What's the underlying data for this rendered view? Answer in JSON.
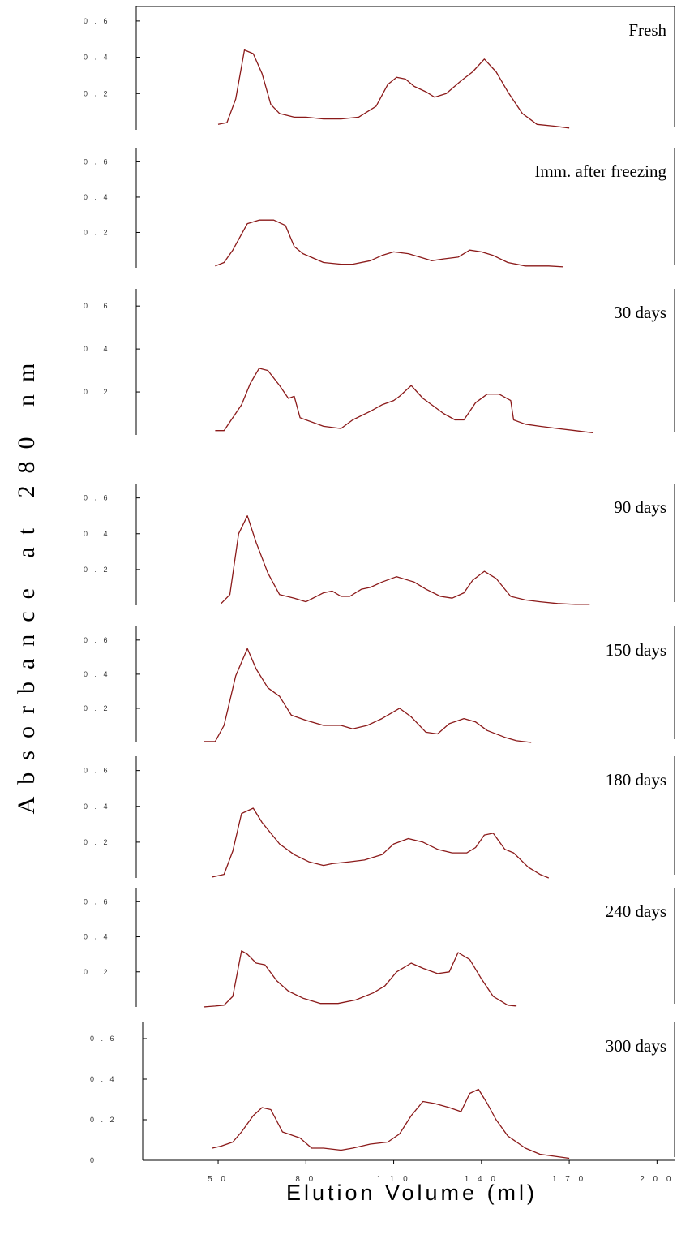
{
  "chart_data": {
    "type": "line",
    "ylabel": "Absorbance at 280 nm",
    "xlabel": "Elution Volume (ml)",
    "x_ticks": [
      "5 0",
      "8 0",
      "1 1 0",
      "1 4 0",
      "1 7 0",
      "2 0 0"
    ],
    "x_tick_values": [
      50,
      80,
      110,
      140,
      170,
      200
    ],
    "xlim": [
      22,
      206
    ],
    "color": "#8b1a1a",
    "panels": [
      {
        "label": "Fresh",
        "y_ticks": [
          "0 . 6",
          "0 . 4",
          "0 . 2"
        ],
        "y_tick_values": [
          0.6,
          0.4,
          0.2
        ],
        "ylim": [
          0,
          0.68
        ],
        "x": [
          50,
          53,
          56,
          59,
          62,
          65,
          68,
          71,
          76,
          80,
          86,
          92,
          98,
          104,
          108,
          111,
          114,
          117,
          121,
          124,
          128,
          133,
          137,
          141,
          145,
          149,
          154,
          159,
          165,
          170
        ],
        "y": [
          0.03,
          0.04,
          0.17,
          0.44,
          0.42,
          0.31,
          0.14,
          0.09,
          0.07,
          0.07,
          0.06,
          0.06,
          0.07,
          0.13,
          0.25,
          0.29,
          0.28,
          0.24,
          0.21,
          0.18,
          0.2,
          0.27,
          0.32,
          0.39,
          0.32,
          0.21,
          0.09,
          0.03,
          0.02,
          0.01
        ]
      },
      {
        "label": "Imm. after freezing",
        "y_ticks": [
          "0 . 6",
          "0 . 4",
          "0 . 2"
        ],
        "y_tick_values": [
          0.6,
          0.4,
          0.2
        ],
        "ylim": [
          0,
          0.68
        ],
        "x": [
          49,
          52,
          55,
          60,
          64,
          69,
          73,
          76,
          79,
          86,
          92,
          96,
          102,
          106,
          110,
          115,
          119,
          123,
          127,
          132,
          136,
          140,
          144,
          149,
          155,
          163,
          168
        ],
        "y": [
          0.01,
          0.03,
          0.1,
          0.25,
          0.27,
          0.27,
          0.24,
          0.12,
          0.08,
          0.03,
          0.02,
          0.02,
          0.04,
          0.07,
          0.09,
          0.08,
          0.06,
          0.04,
          0.05,
          0.06,
          0.1,
          0.09,
          0.07,
          0.03,
          0.01,
          0.01,
          0.005
        ]
      },
      {
        "label": "30 days",
        "y_ticks": [
          "0 . 6",
          "0 . 4",
          "0 . 2"
        ],
        "y_tick_values": [
          0.6,
          0.4,
          0.2
        ],
        "ylim": [
          0,
          0.68
        ],
        "x": [
          49,
          52,
          55,
          58,
          61,
          64,
          67,
          71,
          74,
          76,
          78,
          80,
          86,
          92,
          96,
          102,
          106,
          110,
          112,
          116,
          120,
          123,
          127,
          131,
          134,
          138,
          142,
          146,
          150,
          151,
          155,
          160,
          166,
          172,
          178
        ],
        "y": [
          0.02,
          0.02,
          0.08,
          0.14,
          0.24,
          0.31,
          0.3,
          0.23,
          0.17,
          0.18,
          0.08,
          0.07,
          0.04,
          0.03,
          0.07,
          0.11,
          0.14,
          0.16,
          0.18,
          0.23,
          0.17,
          0.14,
          0.1,
          0.07,
          0.07,
          0.15,
          0.19,
          0.19,
          0.16,
          0.07,
          0.05,
          0.04,
          0.03,
          0.02,
          0.01
        ]
      },
      {
        "label": "90 days",
        "y_ticks": [
          "0 . 6",
          "0 . 4",
          "0 . 2"
        ],
        "y_tick_values": [
          0.6,
          0.4,
          0.2
        ],
        "ylim": [
          0,
          0.68
        ],
        "x": [
          51,
          54,
          57,
          60,
          63,
          67,
          71,
          76,
          80,
          86,
          89,
          92,
          95,
          99,
          102,
          106,
          111,
          117,
          121,
          126,
          130,
          134,
          137,
          141,
          145,
          150,
          155,
          160,
          166,
          172,
          177
        ],
        "y": [
          0.01,
          0.06,
          0.4,
          0.5,
          0.35,
          0.18,
          0.06,
          0.04,
          0.02,
          0.07,
          0.08,
          0.05,
          0.05,
          0.09,
          0.1,
          0.13,
          0.16,
          0.13,
          0.09,
          0.05,
          0.04,
          0.07,
          0.14,
          0.19,
          0.15,
          0.05,
          0.03,
          0.02,
          0.01,
          0.005,
          0.005
        ]
      },
      {
        "label": "150 days",
        "y_ticks": [
          "0 . 6",
          "0 . 4",
          "0 . 2"
        ],
        "y_tick_values": [
          0.6,
          0.4,
          0.2
        ],
        "ylim": [
          0,
          0.68
        ],
        "x": [
          45,
          49,
          52,
          56,
          60,
          63,
          67,
          71,
          75,
          80,
          86,
          92,
          96,
          101,
          106,
          112,
          116,
          121,
          125,
          129,
          134,
          138,
          142,
          148,
          152,
          157
        ],
        "y": [
          0.005,
          0.005,
          0.1,
          0.39,
          0.55,
          0.43,
          0.32,
          0.27,
          0.16,
          0.13,
          0.1,
          0.1,
          0.08,
          0.1,
          0.14,
          0.2,
          0.15,
          0.06,
          0.05,
          0.11,
          0.14,
          0.12,
          0.07,
          0.03,
          0.01,
          0.0
        ]
      },
      {
        "label": "180 days",
        "y_ticks": [
          "0 . 6",
          "0 . 4",
          "0 . 2"
        ],
        "y_tick_values": [
          0.6,
          0.4,
          0.2
        ],
        "ylim": [
          0,
          0.68
        ],
        "x": [
          48,
          52,
          55,
          58,
          62,
          65,
          71,
          76,
          81,
          86,
          89,
          95,
          100,
          106,
          110,
          115,
          120,
          125,
          130,
          135,
          138,
          141,
          144,
          148,
          151,
          156,
          160,
          163
        ],
        "y": [
          0.005,
          0.02,
          0.15,
          0.36,
          0.39,
          0.31,
          0.19,
          0.13,
          0.09,
          0.07,
          0.08,
          0.09,
          0.1,
          0.13,
          0.19,
          0.22,
          0.2,
          0.16,
          0.14,
          0.14,
          0.17,
          0.24,
          0.25,
          0.16,
          0.14,
          0.06,
          0.02,
          0.0
        ]
      },
      {
        "label": "240 days",
        "y_ticks": [
          "0 . 6",
          "0 . 4",
          "0 . 2"
        ],
        "y_tick_values": [
          0.6,
          0.4,
          0.2
        ],
        "ylim": [
          0,
          0.68
        ],
        "x": [
          45,
          49,
          52,
          55,
          58,
          60,
          63,
          66,
          70,
          74,
          79,
          85,
          91,
          97,
          103,
          107,
          111,
          116,
          120,
          125,
          129,
          132,
          136,
          140,
          144,
          149,
          152
        ],
        "y": [
          0.0,
          0.005,
          0.01,
          0.06,
          0.32,
          0.3,
          0.25,
          0.24,
          0.15,
          0.09,
          0.05,
          0.02,
          0.02,
          0.04,
          0.08,
          0.12,
          0.2,
          0.25,
          0.22,
          0.19,
          0.2,
          0.31,
          0.27,
          0.16,
          0.06,
          0.01,
          0.005
        ]
      },
      {
        "label": "300 days",
        "y_ticks": [
          "0 . 6",
          "0 . 4",
          "0 . 2",
          "0"
        ],
        "y_tick_values": [
          0.6,
          0.4,
          0.2,
          0
        ],
        "ylim": [
          0,
          0.68
        ],
        "x": [
          48,
          51,
          55,
          58,
          62,
          65,
          68,
          72,
          78,
          82,
          86,
          92,
          96,
          102,
          108,
          112,
          116,
          120,
          124,
          129,
          133,
          136,
          139,
          142,
          145,
          149,
          155,
          160,
          165,
          170
        ],
        "y": [
          0.06,
          0.07,
          0.09,
          0.14,
          0.22,
          0.26,
          0.25,
          0.14,
          0.11,
          0.06,
          0.06,
          0.05,
          0.06,
          0.08,
          0.09,
          0.13,
          0.22,
          0.29,
          0.28,
          0.26,
          0.24,
          0.33,
          0.35,
          0.28,
          0.2,
          0.12,
          0.06,
          0.03,
          0.02,
          0.01
        ]
      }
    ]
  }
}
